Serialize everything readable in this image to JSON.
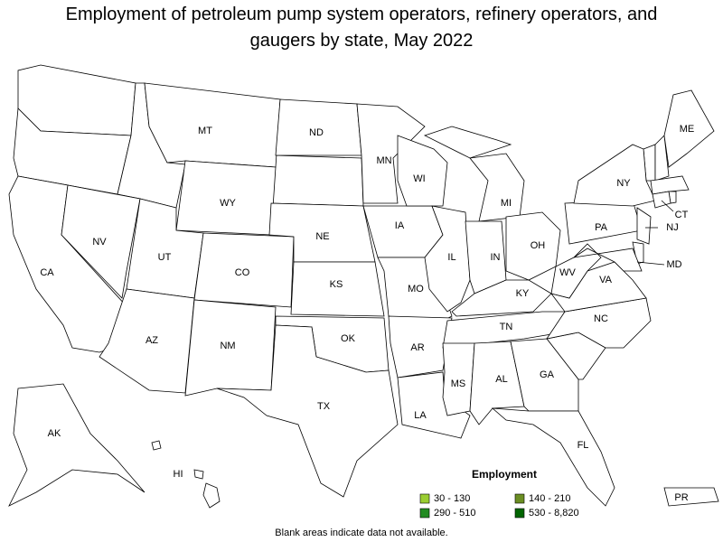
{
  "title": "Employment of petroleum pump system operators, refinery operators, and gaugers by state, May 2022",
  "legend": {
    "title": "Employment",
    "items": [
      {
        "label": "30 - 130",
        "color": "#9acd32"
      },
      {
        "label": "140 - 210",
        "color": "#6b8e23"
      },
      {
        "label": "290 - 510",
        "color": "#228b22"
      },
      {
        "label": "530 - 8,820",
        "color": "#006400"
      }
    ]
  },
  "states": [
    {
      "label": "CA",
      "color": "#006400"
    },
    {
      "label": "NV",
      "color": "#9acd32"
    },
    {
      "label": "MT",
      "color": "#228b22"
    },
    {
      "label": "WY",
      "color": "#006400"
    },
    {
      "label": "UT",
      "color": "#228b22"
    },
    {
      "label": "CO",
      "color": "#228b22"
    },
    {
      "label": "AZ",
      "color": "#6b8e23"
    },
    {
      "label": "NM",
      "color": "#228b22"
    },
    {
      "label": "ND",
      "color": "#228b22"
    },
    {
      "label": "NE",
      "color": "#9acd32"
    },
    {
      "label": "KS",
      "color": "#006400"
    },
    {
      "label": "OK",
      "color": "#006400"
    },
    {
      "label": "TX",
      "color": "#006400"
    },
    {
      "label": "MN",
      "color": "#006400"
    },
    {
      "label": "IA",
      "color": "#9acd32"
    },
    {
      "label": "MO",
      "color": "#6b8e23"
    },
    {
      "label": "AR",
      "color": "#6b8e23"
    },
    {
      "label": "LA",
      "color": "#006400"
    },
    {
      "label": "WI",
      "color": "#9acd32"
    },
    {
      "label": "IL",
      "color": "#006400"
    },
    {
      "label": "MI",
      "color": "#6b8e23"
    },
    {
      "label": "IN",
      "color": "#228b22"
    },
    {
      "label": "OH",
      "color": "#006400"
    },
    {
      "label": "KY",
      "color": "#228b22"
    },
    {
      "label": "TN",
      "color": "#6b8e23"
    },
    {
      "label": "MS",
      "color": "#006400"
    },
    {
      "label": "AL",
      "color": "#6b8e23"
    },
    {
      "label": "GA",
      "color": "#6b8e23"
    },
    {
      "label": "FL",
      "color": "#228b22"
    },
    {
      "label": "NC",
      "color": "#6b8e23"
    },
    {
      "label": "VA",
      "color": "#9acd32"
    },
    {
      "label": "WV",
      "color": "#6b8e23"
    },
    {
      "label": "PA",
      "color": "#006400"
    },
    {
      "label": "NY",
      "color": "#9acd32"
    },
    {
      "label": "NJ",
      "color": "#228b22"
    },
    {
      "label": "MD",
      "color": "#9acd32"
    },
    {
      "label": "CT",
      "color": "#9acd32"
    },
    {
      "label": "ME",
      "color": "#9acd32"
    },
    {
      "label": "AK",
      "color": "#228b22"
    },
    {
      "label": "HI",
      "color": "#6b8e23"
    },
    {
      "label": "PR",
      "color": "#6b8e23"
    }
  ],
  "note": "Blank areas indicate data not available."
}
